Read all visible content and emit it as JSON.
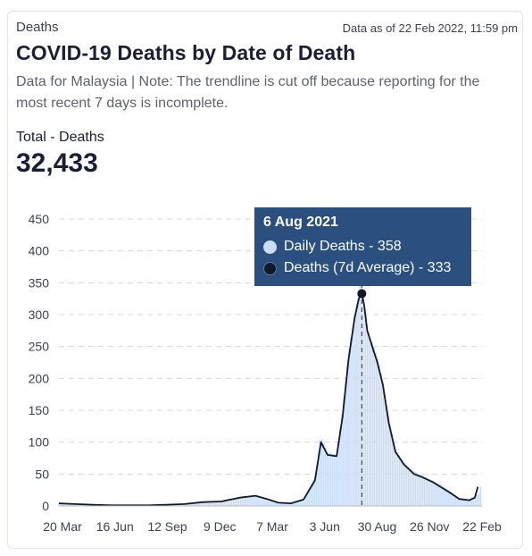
{
  "header": {
    "kicker": "Deaths",
    "as_of": "Data as of 22 Feb 2022, 11:59 pm",
    "title": "COVID-19 Deaths by Date of Death",
    "subtitle": "Data for Malaysia | Note: The trendline is cut off because reporting for the most recent 7 days is incomplete."
  },
  "summary": {
    "label": "Total - Deaths",
    "value": "32,433"
  },
  "tooltip": {
    "date": "6 Aug 2021",
    "daily_label": "Daily Deaths - 358",
    "avg_label": "Deaths (7d Average) - 333"
  },
  "colors": {
    "bars": "#c9ddf7",
    "bar_edge": "#9fbfe8",
    "line": "#111827",
    "grid": "#d5d8de",
    "tooltip_bg": "#2b4f7e",
    "daily_dot": "#c9ddf7",
    "avg_dot": "#111827"
  },
  "chart_data": {
    "type": "area",
    "ylim": [
      0,
      450
    ],
    "yticks": [
      0,
      50,
      100,
      150,
      200,
      250,
      300,
      350,
      400,
      450
    ],
    "x_tick_labels": [
      "20 Mar",
      "16 Jun",
      "12 Sep",
      "9 Dec",
      "7 Mar",
      "3 Jun",
      "30 Aug",
      "26 Nov",
      "22 Feb"
    ],
    "x_start": "2020-03-20",
    "x_end": "2022-02-22",
    "grid": true,
    "series": [
      {
        "name": "Daily Deaths",
        "kind": "bar",
        "x": [
          "2020-03-20",
          "2020-04-15",
          "2020-05-15",
          "2020-06-15",
          "2020-08-15",
          "2020-09-15",
          "2020-10-15",
          "2020-11-15",
          "2020-12-15",
          "2021-01-15",
          "2021-02-10",
          "2021-03-01",
          "2021-03-20",
          "2021-04-10",
          "2021-05-01",
          "2021-05-20",
          "2021-05-30",
          "2021-06-10",
          "2021-06-25",
          "2021-07-05",
          "2021-07-15",
          "2021-07-25",
          "2021-08-01",
          "2021-08-06",
          "2021-08-10",
          "2021-08-15",
          "2021-08-20",
          "2021-08-25",
          "2021-09-01",
          "2021-09-10",
          "2021-09-20",
          "2021-10-01",
          "2021-10-15",
          "2021-11-01",
          "2021-11-15",
          "2021-12-01",
          "2021-12-15",
          "2022-01-01",
          "2022-01-15",
          "2022-02-01",
          "2022-02-10",
          "2022-02-17",
          "2022-02-22"
        ],
        "y": [
          5,
          3,
          2,
          1,
          1,
          2,
          4,
          6,
          8,
          14,
          17,
          12,
          6,
          4,
          12,
          45,
          110,
          85,
          80,
          150,
          240,
          300,
          340,
          358,
          320,
          280,
          265,
          255,
          235,
          200,
          140,
          90,
          70,
          55,
          48,
          40,
          35,
          22,
          12,
          10,
          14,
          20,
          38
        ]
      },
      {
        "name": "Deaths (7d Average)",
        "kind": "line",
        "x": [
          "2020-03-20",
          "2020-04-15",
          "2020-05-15",
          "2020-06-15",
          "2020-08-15",
          "2020-09-15",
          "2020-10-15",
          "2020-11-15",
          "2020-12-15",
          "2021-01-15",
          "2021-02-10",
          "2021-03-01",
          "2021-03-20",
          "2021-04-10",
          "2021-05-01",
          "2021-05-20",
          "2021-05-30",
          "2021-06-10",
          "2021-06-25",
          "2021-07-05",
          "2021-07-15",
          "2021-07-25",
          "2021-08-01",
          "2021-08-06",
          "2021-08-10",
          "2021-08-15",
          "2021-08-20",
          "2021-08-25",
          "2021-09-01",
          "2021-09-10",
          "2021-09-20",
          "2021-10-01",
          "2021-10-15",
          "2021-11-01",
          "2021-11-15",
          "2021-12-01",
          "2021-12-15",
          "2022-01-01",
          "2022-01-15",
          "2022-02-01",
          "2022-02-10",
          "2022-02-15"
        ],
        "y": [
          4,
          3,
          2,
          1,
          1,
          2,
          3,
          6,
          7,
          13,
          16,
          11,
          5,
          4,
          10,
          40,
          100,
          80,
          78,
          140,
          230,
          295,
          325,
          333,
          315,
          275,
          260,
          245,
          225,
          190,
          130,
          85,
          65,
          50,
          45,
          38,
          30,
          20,
          11,
          9,
          13,
          30
        ]
      }
    ],
    "highlight": {
      "date": "2021-08-06",
      "daily": 358,
      "average": 333
    }
  }
}
